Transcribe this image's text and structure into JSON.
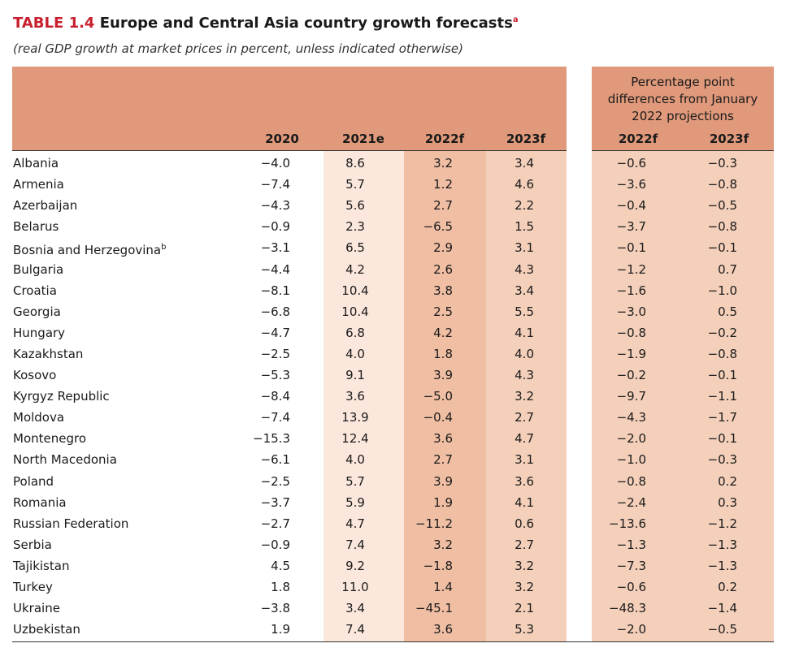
{
  "header": {
    "label": "TABLE 1.4",
    "title": "Europe and Central Asia country growth forecasts",
    "title_note": "a",
    "subtitle": "(real GDP growth at market prices in percent, unless indicated otherwise)"
  },
  "table": {
    "columns": [
      "2020",
      "2021e",
      "2022f",
      "2023f"
    ],
    "group_heading": "Percentage point differences from January 2022 projections",
    "group_columns": [
      "2022f",
      "2023f"
    ],
    "rows": [
      {
        "country": "Albania",
        "values": [
          "−4.0",
          "8.6",
          "3.2",
          "3.4",
          "−0.6",
          "−0.3"
        ]
      },
      {
        "country": "Armenia",
        "values": [
          "−7.4",
          "5.7",
          "1.2",
          "4.6",
          "−3.6",
          "−0.8"
        ]
      },
      {
        "country": "Azerbaijan",
        "values": [
          "−4.3",
          "5.6",
          "2.7",
          "2.2",
          "−0.4",
          "−0.5"
        ]
      },
      {
        "country": "Belarus",
        "values": [
          "−0.9",
          "2.3",
          "−6.5",
          "1.5",
          "−3.7",
          "−0.8"
        ]
      },
      {
        "country": "Bosnia and Herzegovina",
        "note": "b",
        "values": [
          "−3.1",
          "6.5",
          "2.9",
          "3.1",
          "−0.1",
          "−0.1"
        ]
      },
      {
        "country": "Bulgaria",
        "values": [
          "−4.4",
          "4.2",
          "2.6",
          "4.3",
          "−1.2",
          "0.7"
        ]
      },
      {
        "country": "Croatia",
        "values": [
          "−8.1",
          "10.4",
          "3.8",
          "3.4",
          "−1.6",
          "−1.0"
        ]
      },
      {
        "country": "Georgia",
        "values": [
          "−6.8",
          "10.4",
          "2.5",
          "5.5",
          "−3.0",
          "0.5"
        ]
      },
      {
        "country": "Hungary",
        "values": [
          "−4.7",
          "6.8",
          "4.2",
          "4.1",
          "−0.8",
          "−0.2"
        ]
      },
      {
        "country": "Kazakhstan",
        "values": [
          "−2.5",
          "4.0",
          "1.8",
          "4.0",
          "−1.9",
          "−0.8"
        ]
      },
      {
        "country": "Kosovo",
        "values": [
          "−5.3",
          "9.1",
          "3.9",
          "4.3",
          "−0.2",
          "−0.1"
        ]
      },
      {
        "country": "Kyrgyz Republic",
        "values": [
          "−8.4",
          "3.6",
          "−5.0",
          "3.2",
          "−9.7",
          "−1.1"
        ]
      },
      {
        "country": "Moldova",
        "values": [
          "−7.4",
          "13.9",
          "−0.4",
          "2.7",
          "−4.3",
          "−1.7"
        ]
      },
      {
        "country": "Montenegro",
        "values": [
          "−15.3",
          "12.4",
          "3.6",
          "4.7",
          "−2.0",
          "−0.1"
        ]
      },
      {
        "country": "North Macedonia",
        "values": [
          "−6.1",
          "4.0",
          "2.7",
          "3.1",
          "−1.0",
          "−0.3"
        ]
      },
      {
        "country": "Poland",
        "values": [
          "−2.5",
          "5.7",
          "3.9",
          "3.6",
          "−0.8",
          "0.2"
        ]
      },
      {
        "country": "Romania",
        "values": [
          "−3.7",
          "5.9",
          "1.9",
          "4.1",
          "−2.4",
          "0.3"
        ]
      },
      {
        "country": "Russian Federation",
        "values": [
          "−2.7",
          "4.7",
          "−11.2",
          "0.6",
          "−13.6",
          "−1.2"
        ]
      },
      {
        "country": "Serbia",
        "values": [
          "−0.9",
          "7.4",
          "3.2",
          "2.7",
          "−1.3",
          "−1.3"
        ]
      },
      {
        "country": "Tajikistan",
        "values": [
          "4.5",
          "9.2",
          "−1.8",
          "3.2",
          "−7.3",
          "−1.3"
        ]
      },
      {
        "country": "Turkey",
        "values": [
          "1.8",
          "11.0",
          "1.4",
          "3.2",
          "−0.6",
          "0.2"
        ]
      },
      {
        "country": "Ukraine",
        "values": [
          "−3.8",
          "3.4",
          "−45.1",
          "2.1",
          "−48.3",
          "−1.4"
        ]
      },
      {
        "country": "Uzbekistan",
        "values": [
          "1.9",
          "7.4",
          "3.6",
          "5.3",
          "−2.0",
          "−0.5"
        ]
      }
    ]
  }
}
